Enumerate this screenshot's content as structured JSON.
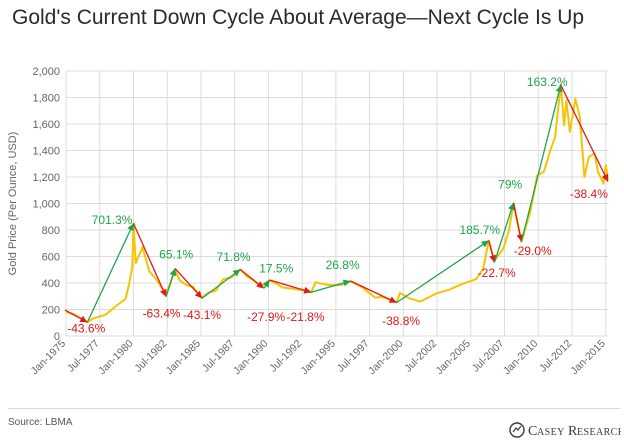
{
  "title": "Gold's Current Down Cycle About Average—Next Cycle Is Up",
  "source": "Source: LBMA",
  "brand": {
    "name": "Casey Research"
  },
  "colors": {
    "price": "#f5c400",
    "up": "#1ea54a",
    "down": "#e01818",
    "grid": "#dcdcdc",
    "axis_text": "#666666"
  },
  "chart_data": {
    "type": "line",
    "title": "Gold's Current Down Cycle About Average—Next Cycle Is Up",
    "xlabel": "",
    "ylabel": "Gold Price (Per Ounce, USD)",
    "ylim": [
      0,
      2000
    ],
    "yticks": [
      0,
      200,
      400,
      600,
      800,
      1000,
      1200,
      1400,
      1600,
      1800,
      2000
    ],
    "ytick_labels": [
      "0",
      "200",
      "400",
      "600",
      "800",
      "1,000",
      "1,200",
      "1,400",
      "1,600",
      "1,800",
      "2,000"
    ],
    "xlim": [
      "1975-01",
      "2015-03"
    ],
    "xticks": [
      "1975-01",
      "1977-07",
      "1980-01",
      "1982-07",
      "1985-01",
      "1987-07",
      "1990-01",
      "1992-07",
      "1995-01",
      "1997-07",
      "2000-01",
      "2002-07",
      "2005-01",
      "2007-07",
      "2010-01",
      "2012-07",
      "2015-01"
    ],
    "xtick_labels": [
      "Jan-1975",
      "Jul-1977",
      "Jan-1980",
      "Jul-1982",
      "Jan-1985",
      "Jul-1987",
      "Jan-1990",
      "Jul-1992",
      "Jan-1995",
      "Jul-1997",
      "Jan-2000",
      "Jul-2002",
      "Jan-2005",
      "Jul-2007",
      "Jan-2010",
      "Jul-2012",
      "Jan-2015"
    ],
    "grid": true,
    "series": [
      {
        "values": [
          [
            "1975-01",
            180
          ],
          [
            "1975-08",
            165
          ],
          [
            "1976-08",
            105
          ],
          [
            "1977-01",
            132
          ],
          [
            "1977-12",
            160
          ],
          [
            "1978-10",
            230
          ],
          [
            "1979-06",
            280
          ],
          [
            "1979-09",
            390
          ],
          [
            "1979-12",
            520
          ],
          [
            "1980-01",
            850
          ],
          [
            "1980-03",
            550
          ],
          [
            "1980-09",
            670
          ],
          [
            "1981-03",
            490
          ],
          [
            "1981-09",
            430
          ],
          [
            "1982-06",
            310
          ],
          [
            "1983-02",
            500
          ],
          [
            "1983-06",
            420
          ],
          [
            "1983-12",
            385
          ],
          [
            "1984-06",
            370
          ],
          [
            "1985-02",
            290
          ],
          [
            "1985-08",
            330
          ],
          [
            "1986-02",
            340
          ],
          [
            "1986-09",
            430
          ],
          [
            "1987-04",
            440
          ],
          [
            "1987-12",
            502
          ],
          [
            "1988-06",
            450
          ],
          [
            "1988-12",
            420
          ],
          [
            "1989-06",
            370
          ],
          [
            "1989-12",
            410
          ],
          [
            "1990-02",
            420
          ],
          [
            "1990-08",
            395
          ],
          [
            "1991-02",
            365
          ],
          [
            "1992-01",
            355
          ],
          [
            "1993-03",
            330
          ],
          [
            "1993-07",
            405
          ],
          [
            "1994-06",
            385
          ],
          [
            "1995-06",
            385
          ],
          [
            "1996-02",
            412
          ],
          [
            "1996-12",
            370
          ],
          [
            "1997-12",
            290
          ],
          [
            "1998-06",
            295
          ],
          [
            "1999-07",
            255
          ],
          [
            "1999-10",
            325
          ],
          [
            "2000-06",
            285
          ],
          [
            "2001-04",
            260
          ],
          [
            "2002-06",
            320
          ],
          [
            "2003-06",
            350
          ],
          [
            "2004-06",
            395
          ],
          [
            "2005-06",
            430
          ],
          [
            "2005-12",
            510
          ],
          [
            "2006-05",
            720
          ],
          [
            "2006-10",
            570
          ],
          [
            "2007-06",
            660
          ],
          [
            "2007-11",
            800
          ],
          [
            "2008-03",
            1000
          ],
          [
            "2008-10",
            712
          ],
          [
            "2009-06",
            940
          ],
          [
            "2009-12",
            1210
          ],
          [
            "2010-06",
            1240
          ],
          [
            "2010-12",
            1410
          ],
          [
            "2011-04",
            1500
          ],
          [
            "2011-09",
            1895
          ],
          [
            "2011-12",
            1590
          ],
          [
            "2012-02",
            1780
          ],
          [
            "2012-05",
            1540
          ],
          [
            "2012-10",
            1790
          ],
          [
            "2013-02",
            1650
          ],
          [
            "2013-06",
            1200
          ],
          [
            "2013-10",
            1350
          ],
          [
            "2014-03",
            1380
          ],
          [
            "2014-06",
            1240
          ],
          [
            "2014-11",
            1150
          ],
          [
            "2015-01",
            1290
          ],
          [
            "2015-03",
            1180
          ]
        ]
      }
    ],
    "cycles": [
      {
        "from": [
          "1974-12",
          197
        ],
        "to": [
          "1976-08",
          104
        ],
        "label": "-43.6%",
        "dir": "down",
        "label_at": [
          "1976-07",
          25
        ]
      },
      {
        "from": [
          "1976-08",
          104
        ],
        "to": [
          "1980-01",
          850
        ],
        "label": "701.3%",
        "dir": "up",
        "label_at": [
          "1978-06",
          845
        ]
      },
      {
        "from": [
          "1980-01",
          850
        ],
        "to": [
          "1982-06",
          297
        ],
        "label": "-63.4%",
        "dir": "down",
        "label_at": [
          "1982-02",
          140
        ]
      },
      {
        "from": [
          "1982-06",
          297
        ],
        "to": [
          "1983-02",
          510
        ],
        "label": "65.1%",
        "dir": "up",
        "label_at": [
          "1983-03",
          585
        ]
      },
      {
        "from": [
          "1983-02",
          510
        ],
        "to": [
          "1985-02",
          285
        ],
        "label": "-43.1%",
        "dir": "down",
        "label_at": [
          "1985-02",
          130
        ]
      },
      {
        "from": [
          "1985-02",
          285
        ],
        "to": [
          "1987-12",
          502
        ],
        "label": "71.8%",
        "dir": "up",
        "label_at": [
          "1987-06",
          565
        ]
      },
      {
        "from": [
          "1987-12",
          502
        ],
        "to": [
          "1989-09",
          360
        ],
        "label": "-27.9%",
        "dir": "down",
        "label_at": [
          "1989-11",
          115
        ]
      },
      {
        "from": [
          "1989-09",
          360
        ],
        "to": [
          "1990-02",
          423
        ],
        "label": "17.5%",
        "dir": "up",
        "label_at": [
          "1990-08",
          480
        ]
      },
      {
        "from": [
          "1990-02",
          423
        ],
        "to": [
          "1993-03",
          330
        ],
        "label": "-21.8%",
        "dir": "down",
        "label_at": [
          "1992-10",
          115
        ]
      },
      {
        "from": [
          "1993-03",
          330
        ],
        "to": [
          "1996-02",
          415
        ],
        "label": "26.8%",
        "dir": "up",
        "label_at": [
          "1995-07",
          505
        ]
      },
      {
        "from": [
          "1996-02",
          415
        ],
        "to": [
          "1999-07",
          252
        ],
        "label": "-38.8%",
        "dir": "down",
        "label_at": [
          "1999-11",
          82
        ]
      },
      {
        "from": [
          "1999-07",
          252
        ],
        "to": [
          "2006-05",
          720
        ],
        "label": "185.7%",
        "dir": "up",
        "label_at": [
          "2005-09",
          770
        ]
      },
      {
        "from": [
          "2006-05",
          720
        ],
        "to": [
          "2006-10",
          555
        ],
        "label": "-22.7%",
        "dir": "down",
        "label_at": [
          "2006-12",
          445
        ]
      },
      {
        "from": [
          "2006-10",
          555
        ],
        "to": [
          "2008-03",
          1005
        ],
        "label": "79%",
        "dir": "up",
        "label_at": [
          "2007-12",
          1115
        ]
      },
      {
        "from": [
          "2008-03",
          1005
        ],
        "to": [
          "2008-10",
          712
        ],
        "label": "-29.0%",
        "dir": "down",
        "label_at": [
          "2009-08",
          610
        ]
      },
      {
        "from": [
          "2008-10",
          712
        ],
        "to": [
          "2011-09",
          1895
        ],
        "label": "163.2%",
        "dir": "up",
        "label_at": [
          "2010-09",
          1885
        ]
      },
      {
        "from": [
          "2011-09",
          1895
        ],
        "to": [
          "2015-03",
          1165
        ],
        "label": "-38.4%",
        "dir": "down",
        "label_at": [
          "2013-10",
          1040
        ]
      }
    ]
  }
}
